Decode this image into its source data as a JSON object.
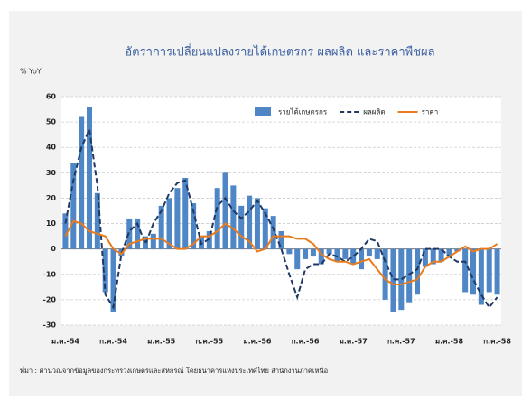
{
  "chart_data": {
    "type": "bar",
    "title": "อัตราการเปลี่ยนแปลงรายได้เกษตรกร ผลผลิต และราคาพืชผล",
    "y_label": "% YoY",
    "source": "ที่มา : คำนวณจากข้อมูลของกระทรวงเกษตรและสหกรณ์ โดยธนาคารแห่งประเทศไทย สำนักงานภาคเหนือ",
    "categories": [
      "ม.ค.-54",
      null,
      null,
      null,
      null,
      null,
      "ก.ค.-54",
      null,
      null,
      null,
      null,
      null,
      "ม.ค.-55",
      null,
      null,
      null,
      null,
      null,
      "ก.ค.-55",
      null,
      null,
      null,
      null,
      null,
      "ม.ค.-56",
      null,
      null,
      null,
      null,
      null,
      "ก.ค.-56",
      null,
      null,
      null,
      null,
      null,
      "ม.ค.-57",
      null,
      null,
      null,
      null,
      null,
      "ก.ค.-57",
      null,
      null,
      null,
      null,
      null,
      "ม.ค.-58",
      null,
      null,
      null,
      null,
      null,
      "ก.ค.-58"
    ],
    "series": [
      {
        "name": "รายได้เกษตรกร",
        "type": "bar",
        "color": "#4f86c6",
        "values": [
          14,
          34,
          52,
          56,
          22,
          -17,
          -25,
          -3,
          12,
          12,
          5,
          6,
          17,
          20,
          24,
          28,
          18,
          5,
          7,
          24,
          30,
          25,
          17,
          21,
          20,
          16,
          13,
          7,
          -2,
          -8,
          -4,
          -3,
          -6,
          -2,
          -5,
          -4,
          -6,
          -8,
          -3,
          -4,
          -20,
          -25,
          -24,
          -21,
          -18,
          -7,
          -6,
          -5,
          -3,
          -1,
          -17,
          -18,
          -22,
          -17,
          -18
        ]
      },
      {
        "name": "ผลผลิต",
        "type": "line",
        "dash": true,
        "color": "#1f3864",
        "values": [
          10,
          27,
          40,
          47,
          25,
          -18,
          -23,
          -2,
          7,
          10,
          2,
          10,
          15,
          22,
          26,
          27,
          15,
          2,
          4,
          17,
          20,
          15,
          12,
          15,
          19,
          14,
          8,
          0,
          -10,
          -19,
          -8,
          -6,
          -6,
          -2,
          -3,
          -5,
          -3,
          0,
          4,
          3,
          -5,
          -12,
          -12,
          -10,
          -8,
          0,
          0,
          0,
          -3,
          -5,
          -5,
          -12,
          -18,
          -23,
          -19
        ]
      },
      {
        "name": "ราคา",
        "type": "line",
        "dash": false,
        "color": "#e97b1c",
        "values": [
          5,
          11,
          10,
          7,
          6,
          5,
          0,
          -2,
          2,
          3,
          4,
          4,
          4,
          2,
          0,
          0,
          2,
          5,
          5,
          7,
          10,
          8,
          5,
          3,
          -1,
          0,
          5,
          5,
          5,
          4,
          4,
          2,
          -2,
          -4,
          -5,
          -5,
          -6,
          -5,
          -4,
          -8,
          -12,
          -14,
          -14,
          -13,
          -12,
          -7,
          -5,
          -5,
          -3,
          -1,
          1,
          -1,
          0,
          0,
          2
        ]
      }
    ],
    "ylim": [
      -30,
      60
    ],
    "yticks": [
      -30,
      -20,
      -10,
      0,
      10,
      20,
      30,
      40,
      50,
      60
    ],
    "grid": true
  }
}
